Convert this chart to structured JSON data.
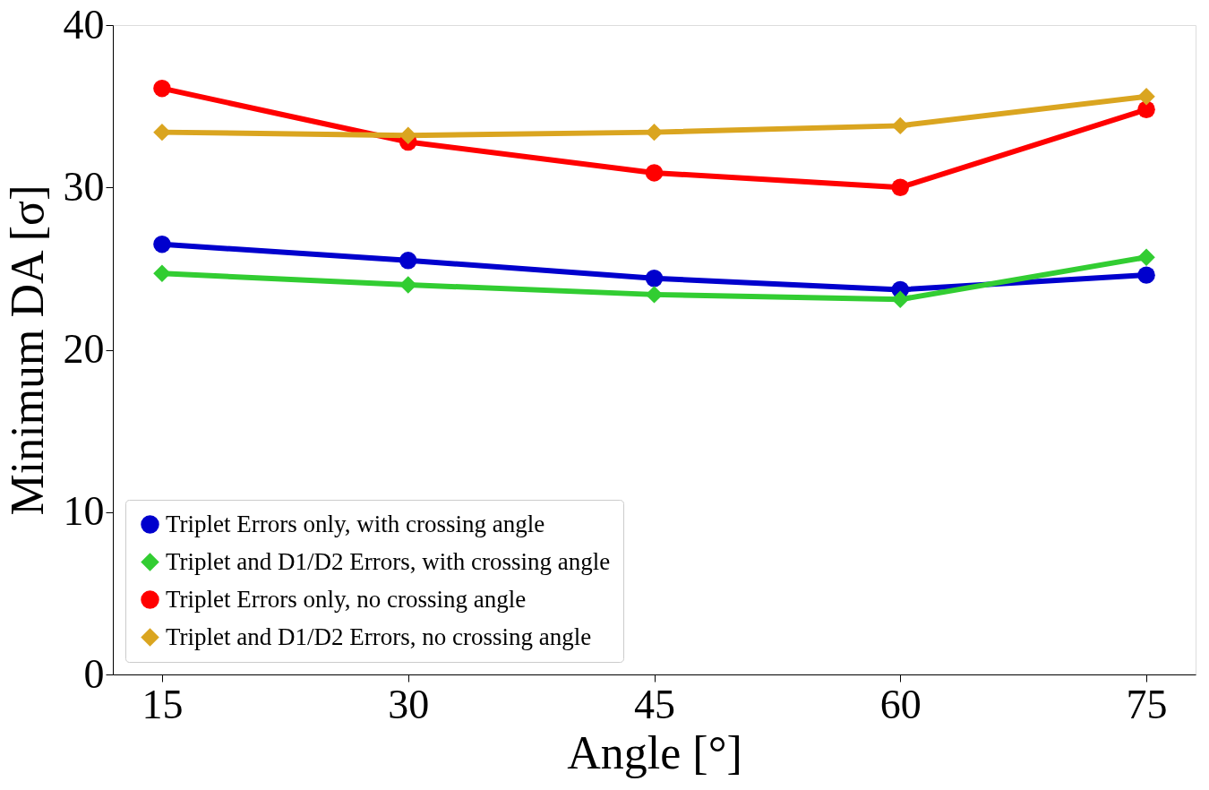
{
  "chart_data": {
    "type": "line",
    "xlabel": "Angle  [°]",
    "ylabel": "Minimum DA  [σ]",
    "x": [
      15,
      30,
      45,
      60,
      75
    ],
    "xlim": [
      12,
      78
    ],
    "xticks": [
      15,
      30,
      45,
      60,
      75
    ],
    "ylim": [
      0,
      40
    ],
    "yticks": [
      0,
      10,
      20,
      30,
      40
    ],
    "grid": false,
    "legend": "bottom left",
    "line_style": "solid",
    "series": [
      {
        "name": "Triplet Errors only, with crossing angle",
        "color": "#0000cd",
        "marker": "circle",
        "values": [
          26.5,
          25.5,
          24.4,
          23.7,
          24.6
        ]
      },
      {
        "name": "Triplet and D1/D2 Errors, with crossing angle",
        "color": "#32cd32",
        "marker": "diamond",
        "values": [
          24.7,
          24.0,
          23.4,
          23.1,
          25.7
        ]
      },
      {
        "name": "Triplet Errors only, no crossing angle",
        "color": "#ff0000",
        "marker": "circle",
        "values": [
          36.1,
          32.8,
          30.9,
          30.0,
          34.8
        ]
      },
      {
        "name": "Triplet and D1/D2 Errors, no crossing angle",
        "color": "#daa520",
        "marker": "diamond",
        "values": [
          33.4,
          33.2,
          33.4,
          33.8,
          35.6
        ]
      }
    ]
  }
}
